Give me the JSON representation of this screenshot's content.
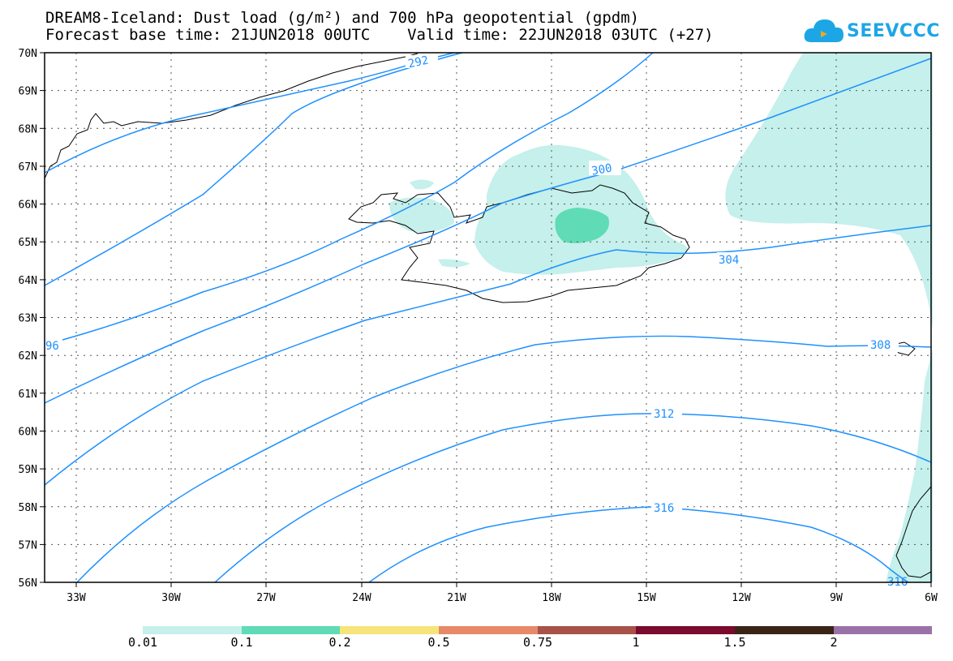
{
  "title_line1": "DREAM8-Iceland: Dust load (g/m²) and 700 hPa geopotential (gpdm)",
  "title_line2": "Forecast base time: 21JUN2018 00UTC    Valid time: 22JUN2018 03UTC (+27)",
  "logo_text": "SEEVCCC",
  "map": {
    "lat_range": [
      56,
      70
    ],
    "lon_range": [
      -34.5,
      -6
    ],
    "lat_labels": [
      "70N",
      "69N",
      "68N",
      "67N",
      "66N",
      "65N",
      "64N",
      "63N",
      "62N",
      "61N",
      "60N",
      "59N",
      "58N",
      "57N",
      "56N"
    ],
    "lon_labels": [
      "33W",
      "30W",
      "27W",
      "24W",
      "21W",
      "18W",
      "15W",
      "12W",
      "9W",
      "6W"
    ],
    "contour_labels": [
      "292",
      "96",
      "300",
      "304",
      "308",
      "312",
      "316",
      "316"
    ],
    "colors": {
      "contour": "#1e90ff",
      "dust_low": "#c5f0eb",
      "dust_mid": "#5fdcb5"
    }
  },
  "legend": {
    "labels": [
      "0.01",
      "0.1",
      "0.2",
      "0.5",
      "0.75",
      "1",
      "1.5",
      "2"
    ],
    "colors": [
      "#c5f0eb",
      "#5fdcb5",
      "#f5e57a",
      "#e8896a",
      "#a8524a",
      "#7a0a2e",
      "#3a2416",
      "#9b72a8"
    ]
  }
}
